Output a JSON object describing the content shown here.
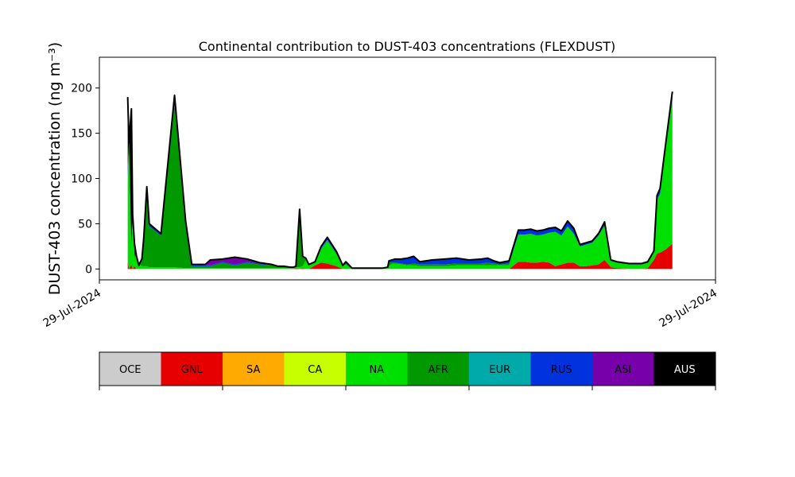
{
  "chart_data": {
    "type": "area",
    "stacked": true,
    "title": "Continental contribution to DUST-403 concentrations (FLEXDUST)",
    "ylabel": "DUST-403 concentration (ng m⁻³)",
    "xlabel": "",
    "ylim": [
      -12,
      234
    ],
    "yticks": [
      0,
      50,
      100,
      150,
      200
    ],
    "xticks": [
      "29-Jul-2024",
      "29-Jul-2024"
    ],
    "xlim": [
      0,
      100
    ],
    "grid": false,
    "x": [
      4.6,
      4.8,
      5.2,
      5.4,
      5.7,
      6.0,
      6.4,
      6.6,
      6.9,
      7.2,
      7.7,
      8.1,
      10.0,
      12.2,
      14.0,
      15.0,
      17.2,
      18.0,
      20.0,
      22.0,
      24.0,
      26.0,
      28.0,
      29.0,
      30.0,
      31.0,
      31.5,
      31.9,
      32.5,
      33.0,
      33.5,
      34.0,
      35.0,
      36.0,
      37.0,
      38.5,
      39.5,
      40.0,
      41.0,
      42.0,
      43.0,
      44.0,
      45.0,
      46.0,
      46.8,
      47.0,
      47.5,
      48.0,
      49.0,
      50.0,
      51.0,
      52.0,
      53.0,
      54.0,
      56.0,
      58.0,
      60.0,
      62.0,
      63.0,
      64.0,
      65.0,
      66.5,
      68.0,
      69.0,
      70.0,
      71.0,
      72.0,
      73.0,
      74.0,
      75.0,
      76.0,
      77.0,
      78.0,
      79.0,
      80.0,
      81.0,
      82.0,
      83.0,
      84.0,
      86.0,
      88.0,
      89.0,
      90.0,
      90.5,
      91.0,
      92.0,
      93.0
    ],
    "series": [
      {
        "name": "OCE",
        "color": "#cccccc",
        "values": [
          0,
          0,
          0,
          0,
          0,
          0,
          0,
          0,
          0,
          0,
          0,
          0,
          0,
          0,
          0,
          0,
          0,
          0,
          0,
          0,
          0,
          0,
          0,
          0,
          0,
          0,
          0,
          0,
          0,
          0,
          0,
          0,
          0,
          0,
          0,
          0,
          0,
          0,
          0,
          0,
          0,
          0,
          0,
          0,
          0,
          0,
          0,
          0,
          0,
          0,
          0,
          0,
          0,
          0,
          0,
          0,
          0,
          0,
          0,
          0,
          0,
          0,
          0,
          0,
          0,
          0,
          0,
          0,
          0,
          0,
          0,
          0,
          0,
          0,
          0,
          0,
          0,
          0,
          0,
          0,
          0,
          0,
          0,
          0,
          0,
          0,
          0
        ]
      },
      {
        "name": "GNL",
        "color": "#e60000",
        "values": [
          8,
          0,
          5,
          0,
          3,
          0,
          0,
          0,
          0,
          0,
          0,
          0,
          0,
          0,
          0,
          0,
          0,
          0,
          0,
          0,
          0,
          0,
          0,
          0,
          0,
          0,
          0,
          1,
          0,
          1,
          0,
          0,
          4,
          7,
          6,
          3,
          0,
          0,
          0,
          0,
          0,
          0,
          0,
          0,
          0,
          0,
          0,
          0,
          0,
          0,
          0,
          0,
          0,
          0,
          0,
          0,
          0,
          0,
          0,
          0,
          0,
          0,
          8,
          8,
          7,
          7,
          8,
          7,
          3,
          5,
          7,
          7,
          3,
          3,
          4,
          5,
          10,
          2,
          1,
          0,
          0,
          1,
          10,
          17,
          18,
          22,
          28
        ]
      },
      {
        "name": "SA",
        "color": "#ffaa00",
        "values": [
          0,
          0,
          0,
          0,
          0,
          0,
          0,
          0,
          0,
          0,
          0,
          0,
          0,
          0,
          0,
          0,
          0,
          0,
          0,
          0,
          0,
          0,
          0,
          0,
          0,
          0,
          0,
          0,
          0,
          0,
          0,
          0,
          0,
          0,
          0,
          0,
          0,
          0,
          0,
          0,
          0,
          0,
          0,
          0,
          0,
          0,
          0,
          0,
          0,
          0,
          0,
          0,
          0,
          0,
          0,
          0,
          0,
          0,
          0,
          0,
          0,
          0,
          0,
          0,
          0,
          0,
          0,
          0,
          0,
          0,
          0,
          0,
          0,
          0,
          0,
          0,
          0,
          0,
          0,
          0,
          0,
          0,
          0,
          0,
          0,
          0,
          0
        ]
      },
      {
        "name": "CA",
        "color": "#c8ff00",
        "values": [
          0,
          0,
          0,
          0,
          0,
          0,
          0,
          0,
          0,
          0,
          0,
          0,
          0,
          0,
          0,
          0,
          0,
          0,
          0,
          0,
          0,
          0,
          0,
          0,
          0,
          0,
          0,
          0,
          0,
          0,
          0,
          0,
          0,
          0,
          0,
          0,
          0,
          0,
          0,
          0,
          0,
          0,
          0,
          0,
          0,
          0,
          0,
          0,
          0,
          0,
          0,
          0,
          0,
          0,
          0,
          0,
          0,
          0,
          0,
          0,
          0,
          0,
          0,
          0,
          0,
          0,
          0,
          0,
          0,
          0,
          0,
          0,
          0,
          0,
          0,
          0,
          0,
          0,
          0,
          0,
          0,
          0,
          0,
          0,
          0,
          0,
          0
        ]
      },
      {
        "name": "NA",
        "color": "#00e000",
        "values": [
          90,
          140,
          15,
          60,
          8,
          15,
          3,
          5,
          3,
          3,
          3,
          2,
          2,
          2,
          1,
          1,
          1,
          1,
          1,
          1,
          1,
          1,
          1,
          1,
          1,
          1,
          1,
          1,
          2,
          2,
          10,
          4,
          3,
          14,
          24,
          13,
          3,
          5,
          0,
          0,
          0,
          0,
          0,
          0,
          1,
          3,
          6,
          6,
          5,
          4,
          4,
          3,
          3,
          3,
          3,
          4,
          4,
          4,
          4,
          4,
          4,
          4,
          30,
          30,
          32,
          30,
          30,
          33,
          38,
          32,
          40,
          32,
          22,
          24,
          25,
          32,
          38,
          7,
          6,
          5,
          5,
          6,
          9,
          60,
          65,
          115,
          160
        ]
      },
      {
        "name": "AFR",
        "color": "#009900",
        "values": [
          2,
          0,
          4,
          0,
          3,
          0,
          1,
          2,
          8,
          30,
          80,
          45,
          35,
          180,
          50,
          2,
          2,
          2,
          6,
          3,
          6,
          4,
          3,
          2,
          2,
          1,
          1,
          1,
          60,
          10,
          1,
          1,
          1,
          1,
          1,
          1,
          1,
          1,
          1,
          1,
          1,
          1,
          1,
          1,
          1,
          4,
          1,
          1,
          1,
          1,
          2,
          2,
          2,
          2,
          2,
          2,
          2,
          2,
          3,
          2,
          1,
          2,
          0,
          0,
          0,
          0,
          0,
          0,
          0,
          0,
          0,
          0,
          0,
          0,
          0,
          0,
          0,
          0,
          0,
          0,
          0,
          0,
          0,
          0,
          0,
          0,
          0
        ]
      },
      {
        "name": "EUR",
        "color": "#00aaaa",
        "values": [
          2,
          0,
          0,
          0,
          0,
          0,
          0,
          0,
          0,
          0,
          0,
          0,
          0,
          0,
          0,
          0,
          0,
          0,
          0,
          0,
          0,
          0,
          0,
          0,
          0,
          0,
          0,
          0,
          0,
          0,
          0,
          0,
          0,
          1,
          1,
          0,
          0,
          0,
          0,
          0,
          0,
          0,
          0,
          0,
          0,
          0,
          0,
          0,
          0,
          0,
          0,
          0,
          0,
          0,
          0,
          0,
          0,
          0,
          0,
          0,
          0,
          0,
          0,
          0,
          0,
          0,
          0,
          0,
          0,
          0,
          0,
          0,
          0,
          0,
          0,
          0,
          0,
          0,
          0,
          0,
          0,
          0,
          0,
          0,
          0,
          0,
          0
        ]
      },
      {
        "name": "RUS",
        "color": "#0033dd",
        "values": [
          10,
          0,
          2,
          0,
          2,
          0,
          0,
          0,
          0,
          1,
          3,
          2,
          1,
          5,
          1,
          1,
          1,
          1,
          1,
          1,
          1,
          1,
          0,
          0,
          0,
          0,
          0,
          0,
          2,
          1,
          1,
          0,
          0,
          2,
          3,
          2,
          0,
          2,
          0,
          0,
          0,
          0,
          0,
          0,
          0,
          2,
          3,
          4,
          5,
          7,
          8,
          3,
          4,
          5,
          6,
          6,
          4,
          5,
          5,
          3,
          2,
          3,
          5,
          5,
          5,
          5,
          5,
          5,
          5,
          5,
          6,
          6,
          2,
          2,
          2,
          2,
          4,
          1,
          1,
          1,
          1,
          1,
          1,
          4,
          6,
          6,
          8
        ]
      },
      {
        "name": "ASI",
        "color": "#7700aa",
        "values": [
          0,
          0,
          0,
          0,
          0,
          0,
          0,
          0,
          0,
          0,
          5,
          1,
          1,
          5,
          1,
          1,
          1,
          6,
          3,
          8,
          3,
          1,
          1,
          0,
          0,
          0,
          0,
          0,
          2,
          0,
          0,
          0,
          0,
          0,
          0,
          0,
          0,
          0,
          0,
          0,
          0,
          0,
          0,
          0,
          0,
          0,
          0,
          0,
          0,
          0,
          0,
          0,
          0,
          0,
          0,
          0,
          0,
          0,
          0,
          0,
          0,
          0,
          0,
          0,
          0,
          0,
          0,
          0,
          0,
          0,
          0,
          0,
          0,
          0,
          0,
          0,
          0,
          0,
          0,
          0,
          0,
          0,
          0,
          0,
          0,
          0,
          0
        ]
      },
      {
        "name": "AUS",
        "color": "#000000",
        "values": [
          78,
          0,
          151,
          0,
          12,
          0,
          0,
          0,
          0,
          0,
          0,
          0,
          0,
          0,
          0,
          0,
          0,
          0,
          0,
          0,
          0,
          0,
          0,
          0,
          0,
          0,
          0,
          0,
          0,
          0,
          0,
          0,
          0,
          0,
          0,
          0,
          0,
          0,
          0,
          0,
          0,
          0,
          0,
          0,
          0,
          0,
          0,
          0,
          0,
          0,
          0,
          0,
          0,
          0,
          0,
          0,
          0,
          0,
          0,
          0,
          0,
          0,
          0,
          0,
          0,
          0,
          0,
          0,
          0,
          0,
          0,
          0,
          0,
          0,
          0,
          0,
          0,
          0,
          0,
          0,
          0,
          0,
          0,
          0,
          0,
          0,
          0
        ]
      }
    ]
  },
  "legend": {
    "items": [
      {
        "label": "OCE",
        "color": "#cccccc"
      },
      {
        "label": "GNL",
        "color": "#e60000"
      },
      {
        "label": "SA",
        "color": "#ffaa00"
      },
      {
        "label": "CA",
        "color": "#c8ff00"
      },
      {
        "label": "NA",
        "color": "#00e000"
      },
      {
        "label": "AFR",
        "color": "#009900"
      },
      {
        "label": "EUR",
        "color": "#00aaaa"
      },
      {
        "label": "RUS",
        "color": "#0033dd"
      },
      {
        "label": "ASI",
        "color": "#7700aa"
      },
      {
        "label": "AUS",
        "color": "#000000"
      }
    ]
  }
}
